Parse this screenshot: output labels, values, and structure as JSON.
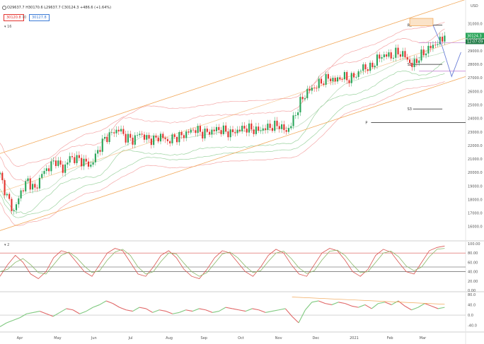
{
  "header": {
    "ohlc": "O29637.7  H30170.6  L29637.7  C30124.3  +486.6 (+1.64%)",
    "bid": "30120.8",
    "spread": "70",
    "ask": "30127.8",
    "indicator_badge": "16",
    "currency": "USD"
  },
  "price_tag": {
    "last": "30124.3",
    "countdown": "12:07:09"
  },
  "colors": {
    "bull": "#2aa55a",
    "bear": "#e3342f",
    "channel": "#f2a95b",
    "bb_red": "#f4a6a6",
    "bb_green": "#9cd3a0",
    "axis_text": "#555",
    "osc_fast": "#d9534f",
    "osc_slow": "#8ab86a",
    "rsi_up": "#7fc97f",
    "rsi_down": "#e06666",
    "projection": "#6b7fd7"
  },
  "chart_data": [
    {
      "type": "candlestick",
      "title": "",
      "x_labels": [
        "Apr",
        "May",
        "Jun",
        "Jul",
        "Aug",
        "Sep",
        "Oct",
        "Nov",
        "Dec",
        "2021",
        "Feb",
        "Mar"
      ],
      "y_ticks": [
        16000,
        17000,
        18000,
        19000,
        20000,
        21000,
        22000,
        23000,
        24000,
        25000,
        26000,
        27000,
        28000,
        29000,
        30000,
        31000
      ],
      "y_tick_labels": [
        "16000.0",
        "17000.0",
        "18000.0",
        "19000.0",
        "20000.0",
        "21000.0",
        "22000.0",
        "23000.0",
        "24000.0",
        "25000.0",
        "26000.0",
        "27000.0",
        "28000.0",
        "29000.0",
        "30000.0",
        "31000.0"
      ],
      "ylim": [
        15200,
        32500
      ],
      "close_path": [
        [
          0,
          19800
        ],
        [
          3,
          18200
        ],
        [
          6,
          17100
        ],
        [
          9,
          18600
        ],
        [
          12,
          19400
        ],
        [
          15,
          18700
        ],
        [
          18,
          19900
        ],
        [
          21,
          20400
        ],
        [
          24,
          20900
        ],
        [
          27,
          20200
        ],
        [
          30,
          21100
        ],
        [
          33,
          21000
        ],
        [
          36,
          20800
        ],
        [
          39,
          20500
        ],
        [
          42,
          21600
        ],
        [
          45,
          22500
        ],
        [
          48,
          22900
        ],
        [
          51,
          23200
        ],
        [
          54,
          22600
        ],
        [
          57,
          22400
        ],
        [
          60,
          22900
        ],
        [
          63,
          22500
        ],
        [
          66,
          22400
        ],
        [
          69,
          22700
        ],
        [
          72,
          22300
        ],
        [
          75,
          22600
        ],
        [
          78,
          22700
        ],
        [
          81,
          23000
        ],
        [
          84,
          23200
        ],
        [
          87,
          22900
        ],
        [
          90,
          23000
        ],
        [
          93,
          23200
        ],
        [
          96,
          23100
        ],
        [
          99,
          22900
        ],
        [
          102,
          23100
        ],
        [
          105,
          23300
        ],
        [
          108,
          23200
        ],
        [
          111,
          23100
        ],
        [
          114,
          23300
        ],
        [
          117,
          23400
        ],
        [
          120,
          23500
        ],
        [
          123,
          23000
        ],
        [
          126,
          23900
        ],
        [
          129,
          25200
        ],
        [
          132,
          26000
        ],
        [
          135,
          26300
        ],
        [
          138,
          26700
        ],
        [
          141,
          27000
        ],
        [
          144,
          26800
        ],
        [
          147,
          27100
        ],
        [
          150,
          26900
        ],
        [
          153,
          27200
        ],
        [
          156,
          27800
        ],
        [
          159,
          27700
        ],
        [
          162,
          28400
        ],
        [
          165,
          28700
        ],
        [
          168,
          28600
        ],
        [
          171,
          28900
        ],
        [
          174,
          28600
        ],
        [
          177,
          27900
        ],
        [
          180,
          28500
        ],
        [
          183,
          29000
        ],
        [
          186,
          29400
        ],
        [
          189,
          29700
        ],
        [
          191,
          30124
        ]
      ],
      "x_ticks_index": [
        9,
        25,
        41,
        57,
        73,
        88,
        104,
        120,
        136,
        152,
        168,
        182
      ],
      "channel": {
        "upper": [
          [
            0,
            21400
          ],
          [
            200,
            32800
          ]
        ],
        "lower": [
          [
            0,
            15700
          ],
          [
            200,
            27100
          ]
        ],
        "mid": [
          [
            0,
            18550
          ],
          [
            200,
            29950
          ]
        ]
      },
      "pivots": [
        {
          "label": "R3",
          "value": 30900,
          "x_from": 178
        },
        {
          "label": "S1",
          "value": 28000,
          "x_from": 178
        },
        {
          "label": "S3",
          "value": 24700,
          "x_from": 178
        },
        {
          "label": "P",
          "value": 23700,
          "x_from": 160
        }
      ],
      "target_box": {
        "from": 30850,
        "to": 31400,
        "x_from": 176,
        "x_to": 186
      },
      "projection": [
        [
          186,
          30900
        ],
        [
          190,
          29300
        ],
        [
          194,
          27100
        ],
        [
          198,
          28900
        ]
      ],
      "horizontal_lines": [
        {
          "value": 29600
        },
        {
          "value": 27500
        }
      ]
    },
    {
      "type": "line",
      "title": "",
      "badge": "2",
      "ylim": [
        0,
        100
      ],
      "y_ticks": [
        0,
        20,
        40,
        60,
        80,
        100
      ],
      "y_tick_labels": [
        "0.00",
        "20.00",
        "40.00",
        "60.00",
        "80.00",
        "100.00"
      ],
      "levels": [
        80,
        50,
        40
      ],
      "series": [
        {
          "values": [
            30,
            55,
            75,
            60,
            35,
            25,
            40,
            70,
            85,
            80,
            60,
            40,
            30,
            55,
            80,
            90,
            85,
            60,
            35,
            30,
            50,
            75,
            85,
            70,
            45,
            30,
            25,
            45,
            70,
            85,
            80,
            60,
            40,
            30,
            50,
            75,
            88,
            80,
            55,
            35,
            30,
            55,
            80,
            90,
            85,
            65,
            40,
            30,
            45,
            75,
            88,
            82,
            60,
            40,
            35,
            60,
            85,
            92,
            95
          ]
        },
        {
          "values": [
            40,
            45,
            60,
            68,
            55,
            38,
            35,
            55,
            75,
            82,
            70,
            52,
            38,
            42,
            65,
            82,
            88,
            75,
            50,
            35,
            40,
            62,
            80,
            78,
            58,
            40,
            30,
            38,
            58,
            78,
            82,
            70,
            52,
            38,
            42,
            62,
            80,
            84,
            68,
            48,
            36,
            42,
            65,
            84,
            86,
            75,
            55,
            38,
            40,
            60,
            80,
            84,
            72,
            52,
            42,
            50,
            72,
            88,
            90
          ]
        }
      ]
    },
    {
      "type": "line",
      "title": "",
      "ylim": [
        -60,
        85
      ],
      "y_ticks": [
        -40,
        0,
        40,
        80
      ],
      "y_tick_labels": [
        "-40.0",
        "0.0",
        "40.0",
        "80.0"
      ],
      "series": [
        {
          "values": [
            -45,
            -30,
            -20,
            -10,
            5,
            10,
            15,
            5,
            -5,
            10,
            25,
            20,
            5,
            15,
            30,
            40,
            55,
            45,
            30,
            20,
            15,
            30,
            25,
            10,
            20,
            15,
            5,
            10,
            20,
            15,
            25,
            20,
            10,
            15,
            30,
            25,
            20,
            15,
            25,
            20,
            10,
            15,
            20,
            25,
            -5,
            -30,
            20,
            50,
            55,
            45,
            40,
            50,
            45,
            35,
            30,
            40,
            25,
            45,
            50,
            40,
            55,
            35,
            20,
            30,
            45,
            35,
            25,
            30
          ]
        }
      ],
      "trendline": [
        [
          44,
          70
        ],
        [
          67,
          42
        ]
      ]
    }
  ]
}
